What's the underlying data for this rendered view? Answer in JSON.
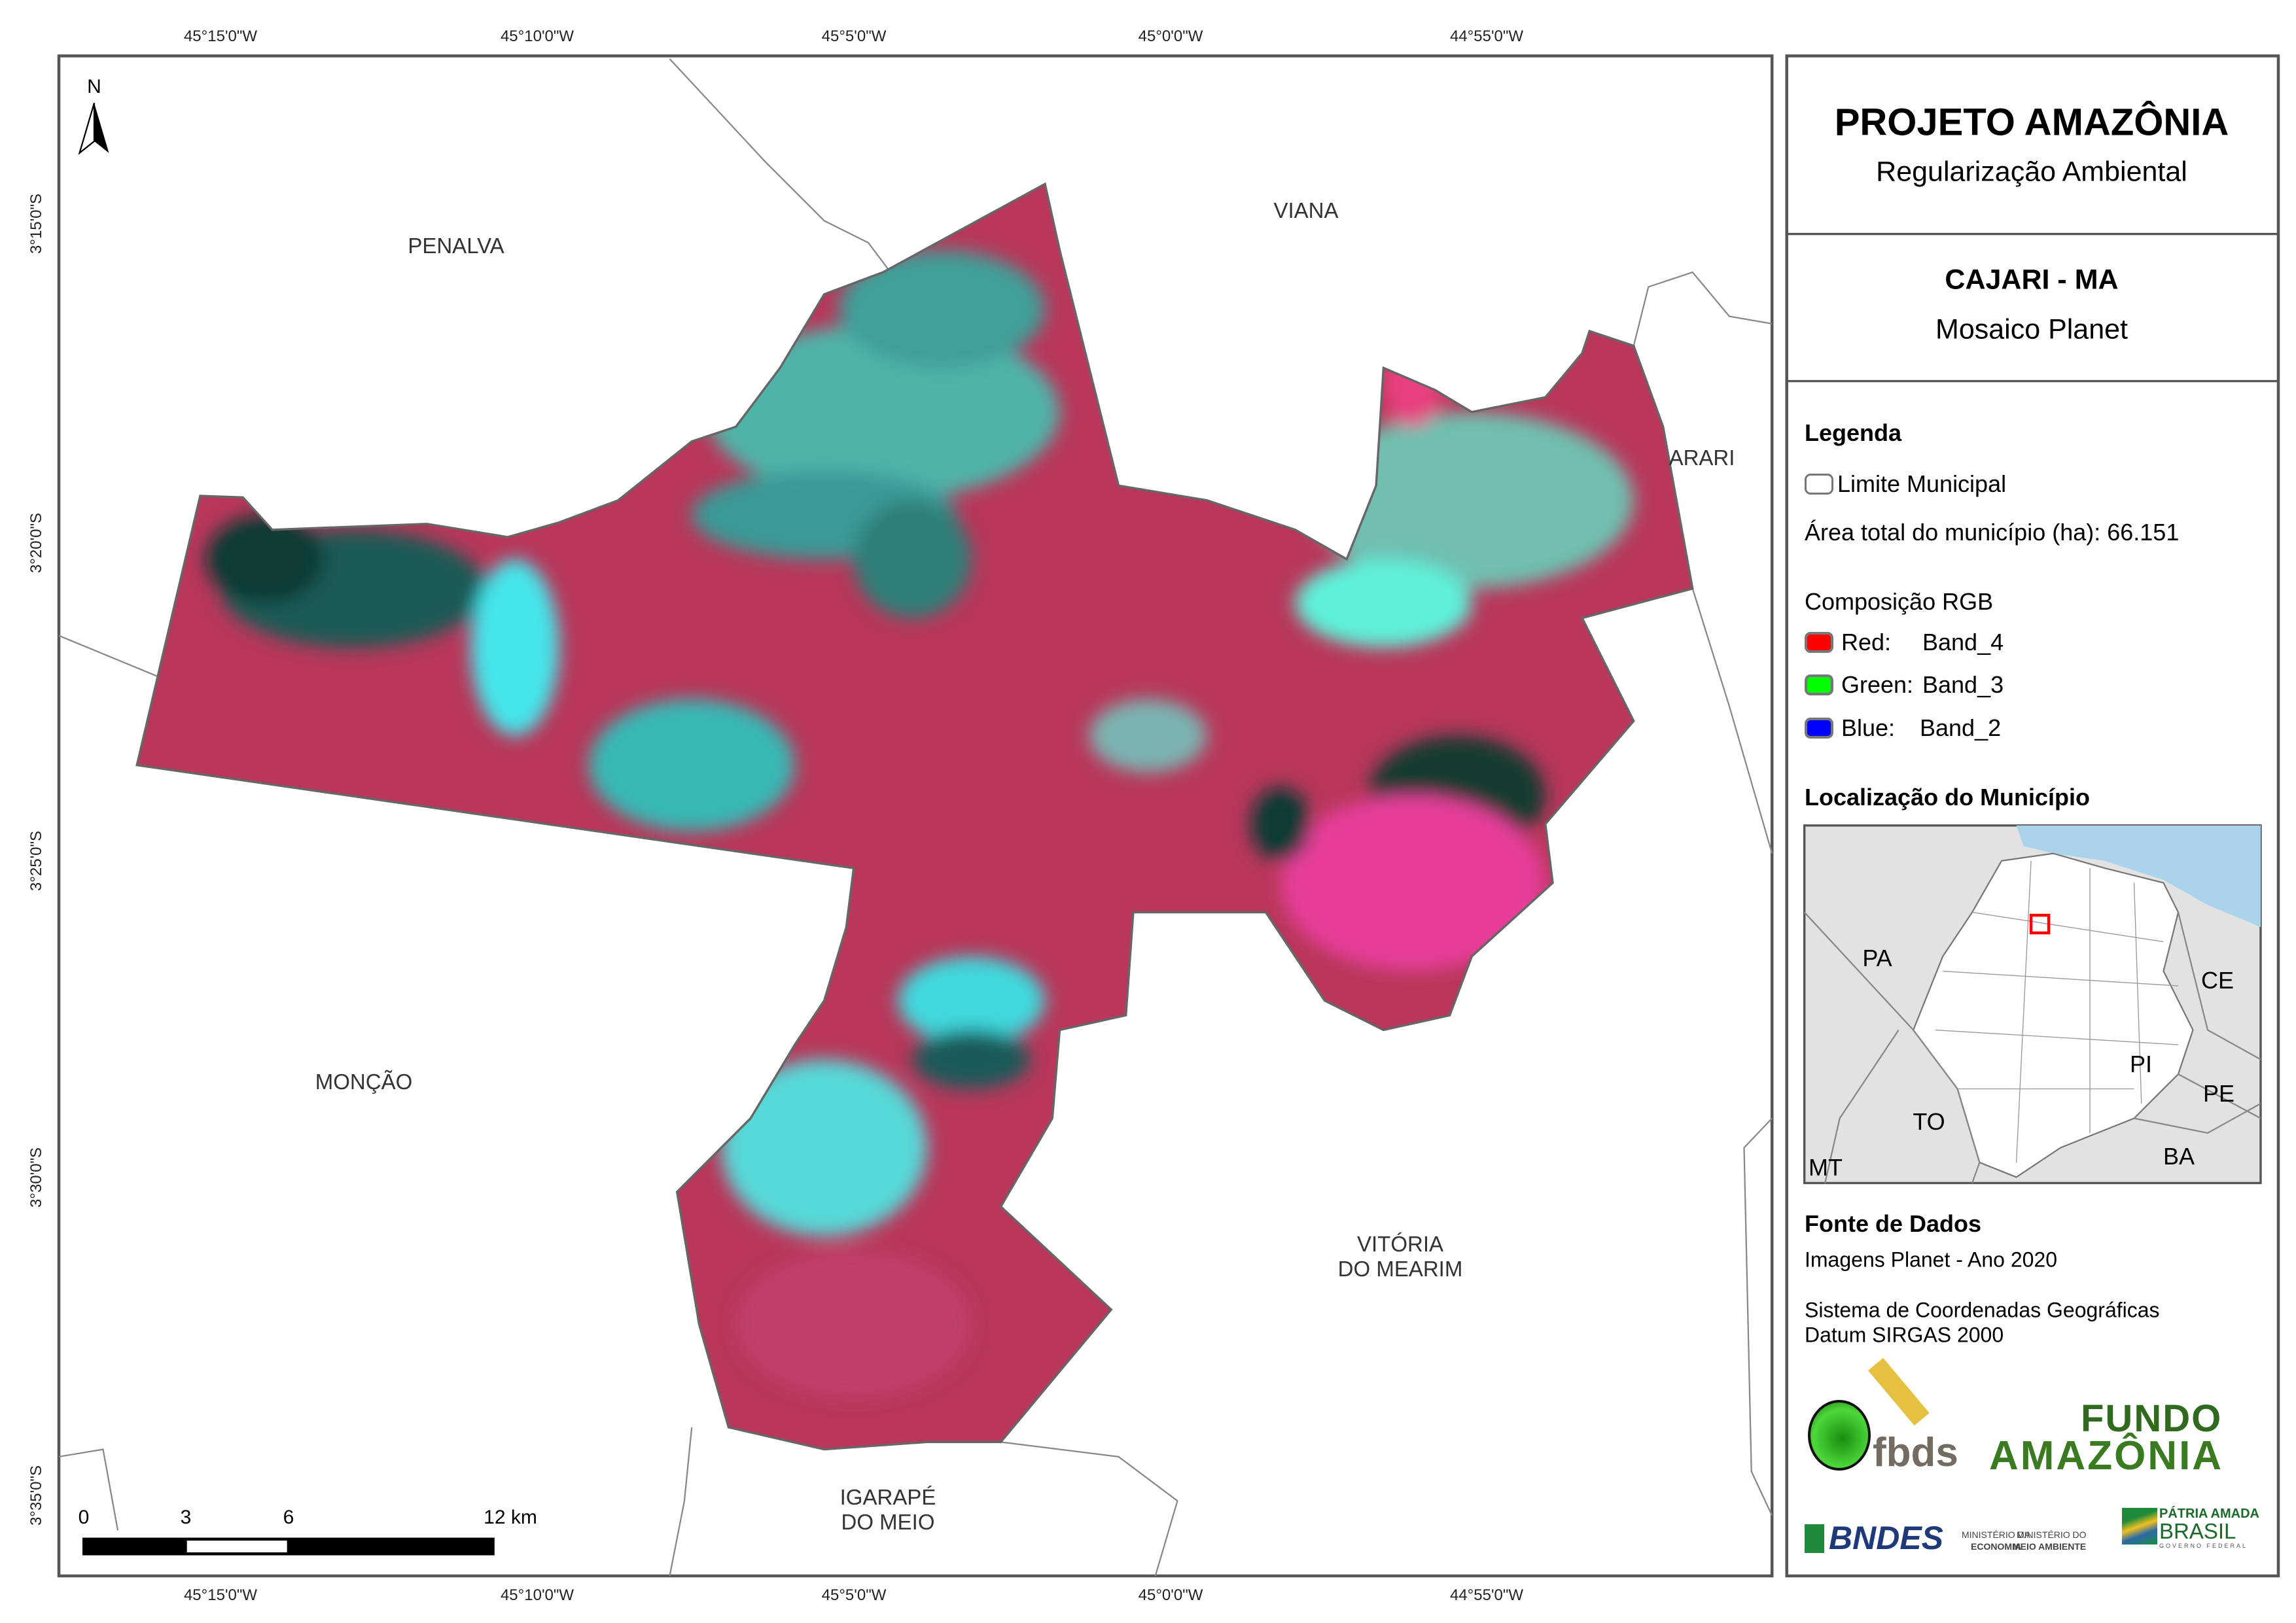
{
  "map": {
    "grid_top": [
      "45°15'0\"W",
      "45°10'0\"W",
      "45°5'0\"W",
      "45°0'0\"W",
      "44°55'0\"W"
    ],
    "grid_bottom": [
      "45°15'0\"W",
      "45°10'0\"W",
      "45°5'0\"W",
      "45°0'0\"W",
      "44°55'0\"W"
    ],
    "grid_left": [
      "3°15'0\"S",
      "3°20'0\"S",
      "3°25'0\"S",
      "3°30'0\"S",
      "3°35'0\"S"
    ],
    "north_label": "N",
    "places": {
      "penalva": "PENALVA",
      "viana": "VIANA",
      "arari": "ARARI",
      "moncao": "MONÇÃO",
      "vitoria_1": "VITÓRIA",
      "vitoria_2": "DO MEARIM",
      "igarape_1": "IGARAPÉ",
      "igarape_2": "DO MEIO"
    },
    "scalebar": {
      "labels": [
        "0",
        "3",
        "6",
        "12 km"
      ]
    },
    "colors": {
      "vegetation": "#b8375a",
      "water": "#3fe0e0",
      "dark": "#0f3a35",
      "boundary": "#777777"
    }
  },
  "panel": {
    "title": "PROJETO AMAZÔNIA",
    "subtitle": "Regularização Ambiental",
    "municipality": "CAJARI - MA",
    "mosaic": "Mosaico Planet",
    "legend": {
      "heading": "Legenda",
      "limit": "Limite Municipal",
      "area": "Área total do município (ha): 66.151",
      "rgb_heading": "Composição RGB",
      "bands": [
        {
          "channel": "Red:",
          "band": "Band_4",
          "color": "#ff0000"
        },
        {
          "channel": "Green:",
          "band": "Band_3",
          "color": "#00ff00"
        },
        {
          "channel": "Blue:",
          "band": "Band_2",
          "color": "#0000ff"
        }
      ]
    },
    "location": {
      "heading": "Localização do Município",
      "states": [
        "PA",
        "CE",
        "PI",
        "PE",
        "TO",
        "BA",
        "MT"
      ]
    },
    "sources": {
      "heading": "Fonte de Dados",
      "images": "Imagens Planet - Ano 2020",
      "crs_1": "Sistema de Coordenadas Geográficas",
      "crs_2": "Datum SIRGAS 2000"
    },
    "logos": {
      "fbds": "fbds",
      "fundo_1": "FUNDO",
      "fundo_2": "AMAZÔNIA",
      "bndes": "BNDES",
      "min_eco_1": "MINISTÉRIO DA",
      "min_eco_2": "ECONOMIA",
      "min_ma_1": "MINISTÉRIO DO",
      "min_ma_2": "MEIO AMBIENTE",
      "patria_1": "PÁTRIA AMADA",
      "patria_2": "BRASIL",
      "patria_3": "GOVERNO FEDERAL"
    }
  }
}
